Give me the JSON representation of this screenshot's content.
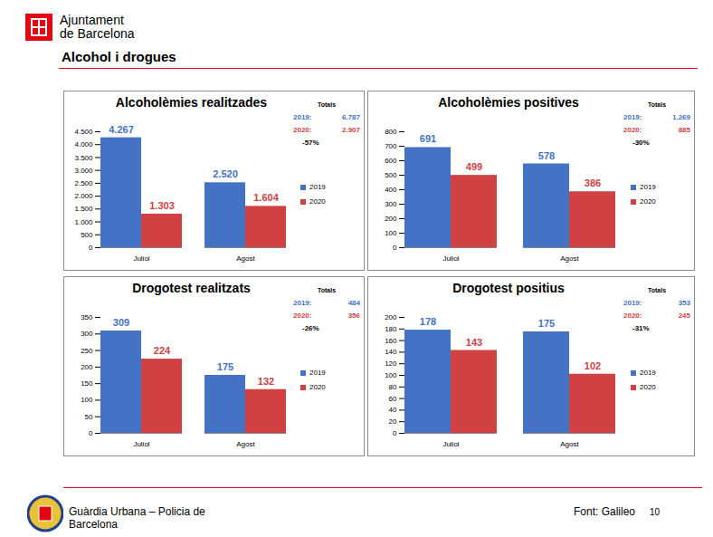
{
  "page": {
    "logo_text": [
      "Ajuntament",
      "de Barcelona"
    ],
    "section_title": "Alcohol i drogues",
    "footer_text": [
      "Guàrdia Urbana – Policia de",
      "Barcelona"
    ],
    "source": "Font: Galileo",
    "page_number": 10
  },
  "chart_data": [
    {
      "type": "bar",
      "title": "Alcoholèmies realitzades",
      "categories": [
        "Juliol",
        "Agost"
      ],
      "series": [
        {
          "name": "2019",
          "color": "#4472c4",
          "values": [
            4267,
            2520
          ],
          "value_labels": [
            "4.267",
            "2.520"
          ]
        },
        {
          "name": "2020",
          "color": "#d04143",
          "values": [
            1303,
            1604
          ],
          "value_labels": [
            "1.303",
            "1.604"
          ]
        }
      ],
      "ylim": [
        0,
        4500
      ],
      "yticks": [
        0,
        500,
        {
          "value": 1000,
          "label": "1.000"
        },
        {
          "value": 1500,
          "label": "1.500"
        },
        {
          "value": 2000,
          "label": "2.000"
        },
        {
          "value": 2500,
          "label": "2.500"
        },
        {
          "value": 3000,
          "label": "3.000"
        },
        {
          "value": 3500,
          "label": "3.500"
        },
        {
          "value": 4000,
          "label": "4.000"
        },
        {
          "value": 4500,
          "label": "4.500"
        }
      ],
      "data_labels": true,
      "legend": "right",
      "totals": {
        "title": "Totals",
        "rows": [
          {
            "name": "2019:",
            "value": 6787,
            "label": "6.787"
          },
          {
            "name": "2020:",
            "value": 2907,
            "label": "2.907"
          }
        ],
        "change": {
          "value": -57,
          "label": "-57%"
        }
      }
    },
    {
      "type": "bar",
      "title": "Alcoholèmies positives",
      "categories": [
        "Juliol",
        "Agost"
      ],
      "series": [
        {
          "name": "2019",
          "color": "#4472c4",
          "values": [
            691,
            578
          ]
        },
        {
          "name": "2020",
          "color": "#d04143",
          "values": [
            499,
            386
          ]
        }
      ],
      "ylim": [
        0,
        800
      ],
      "yticks": [
        0,
        100,
        200,
        300,
        400,
        500,
        600,
        700,
        800
      ],
      "data_labels": true,
      "legend": "right",
      "totals": {
        "title": "Totals",
        "rows": [
          {
            "name": "2019:",
            "value": 1269,
            "label": "1.269"
          },
          {
            "name": "2020:",
            "value": 885
          }
        ],
        "change": {
          "value": -30,
          "label": "-30%"
        }
      }
    },
    {
      "type": "bar",
      "title": "Drogotest realitzats",
      "categories": [
        "Juliol",
        "Agost"
      ],
      "series": [
        {
          "name": "2019",
          "color": "#4472c4",
          "values": [
            309,
            175
          ]
        },
        {
          "name": "2020",
          "color": "#d04143",
          "values": [
            224,
            132
          ]
        }
      ],
      "ylim": [
        0,
        350
      ],
      "yticks": [
        0,
        50,
        100,
        150,
        200,
        250,
        300,
        350
      ],
      "data_labels": true,
      "legend": "right",
      "totals": {
        "title": "Totals",
        "rows": [
          {
            "name": "2019:",
            "value": 484
          },
          {
            "name": "2020:",
            "value": 356
          }
        ],
        "change": {
          "value": -26,
          "label": "-26%"
        }
      }
    },
    {
      "type": "bar",
      "title": "Drogotest positius",
      "categories": [
        "Juliol",
        "Agost"
      ],
      "series": [
        {
          "name": "2019",
          "color": "#4472c4",
          "values": [
            178,
            175
          ]
        },
        {
          "name": "2020",
          "color": "#d04143",
          "values": [
            143,
            102
          ]
        }
      ],
      "ylim": [
        0,
        200
      ],
      "yticks": [
        0,
        20,
        40,
        60,
        80,
        100,
        120,
        140,
        160,
        180,
        200
      ],
      "data_labels": true,
      "legend": "right",
      "totals": {
        "title": "Totals",
        "rows": [
          {
            "name": "2019:",
            "value": 353
          },
          {
            "name": "2020:",
            "value": 245
          }
        ],
        "change": {
          "value": -31,
          "label": "-31%"
        }
      }
    }
  ]
}
